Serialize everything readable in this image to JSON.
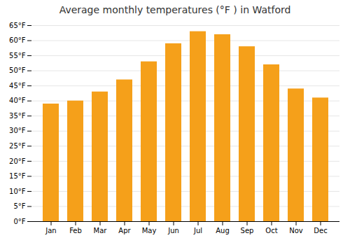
{
  "chart_data": {
    "type": "bar",
    "title": "Average monthly temperatures (°F ) in Watford",
    "categories": [
      "Jan",
      "Feb",
      "Mar",
      "Apr",
      "May",
      "Jun",
      "Jul",
      "Aug",
      "Sep",
      "Oct",
      "Nov",
      "Dec"
    ],
    "values": [
      39,
      40,
      43,
      47,
      53,
      59,
      63,
      62,
      58,
      52,
      44,
      41
    ],
    "color": "#F5A01A",
    "ylim": [
      0,
      65
    ],
    "yticks": [
      {
        "value": 0,
        "label": "0°F"
      },
      {
        "value": 5,
        "label": "5°F"
      },
      {
        "value": 10,
        "label": "10°F"
      },
      {
        "value": 15,
        "label": "15°F"
      },
      {
        "value": 20,
        "label": "20°F"
      },
      {
        "value": 25,
        "label": "25°F"
      },
      {
        "value": 30,
        "label": "30°F"
      },
      {
        "value": 35,
        "label": "35°F"
      },
      {
        "value": 40,
        "label": "40°F"
      },
      {
        "value": 45,
        "label": "45°F"
      },
      {
        "value": 50,
        "label": "50°F"
      },
      {
        "value": 55,
        "label": "55°F"
      },
      {
        "value": 60,
        "label": "60°F"
      },
      {
        "value": 65,
        "label": "65°F"
      }
    ],
    "grid": true
  }
}
